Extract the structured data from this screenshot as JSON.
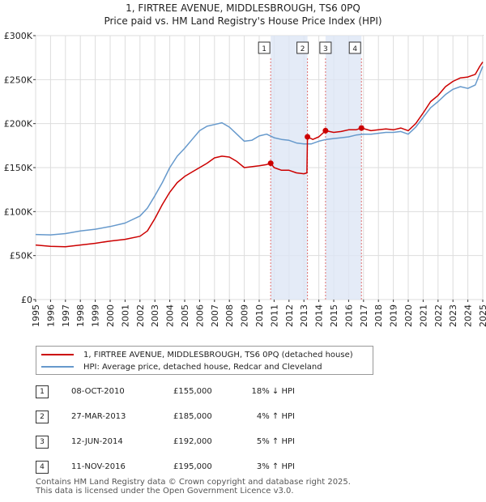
{
  "chart_data": {
    "type": "line",
    "title": "1, FIRTREE AVENUE, MIDDLESBROUGH, TS6 0PQ",
    "subtitle": "Price paid vs. HM Land Registry's House Price Index (HPI)",
    "xlim": [
      1995,
      2025
    ],
    "ylim": [
      0,
      300000
    ],
    "yticks": [
      {
        "value": 0,
        "label": "£0"
      },
      {
        "value": 50000,
        "label": "£50K"
      },
      {
        "value": 100000,
        "label": "£100K"
      },
      {
        "value": 150000,
        "label": "£150K"
      },
      {
        "value": 200000,
        "label": "£200K"
      },
      {
        "value": 250000,
        "label": "£250K"
      },
      {
        "value": 300000,
        "label": "£300K"
      }
    ],
    "xticks": [
      "1995",
      "1996",
      "1997",
      "1998",
      "1999",
      "2000",
      "2001",
      "2002",
      "2003",
      "2004",
      "2005",
      "2006",
      "2007",
      "2008",
      "2009",
      "2010",
      "2011",
      "2012",
      "2013",
      "2014",
      "2015",
      "2016",
      "2017",
      "2018",
      "2019",
      "2020",
      "2021",
      "2022",
      "2023",
      "2024",
      "2025"
    ],
    "grid": true,
    "shaded_ranges": [
      [
        2010.77,
        2013.24
      ],
      [
        2014.45,
        2016.86
      ]
    ],
    "series": [
      {
        "name": "1, FIRTREE AVENUE, MIDDLESBROUGH, TS6 0PQ (detached house)",
        "color": "#cc0000",
        "points": [
          [
            1995.0,
            62000
          ],
          [
            1996.0,
            60500
          ],
          [
            1997.0,
            60000
          ],
          [
            1998.0,
            62000
          ],
          [
            1999.0,
            64000
          ],
          [
            2000.0,
            66500
          ],
          [
            2001.0,
            68500
          ],
          [
            2002.0,
            72000
          ],
          [
            2002.5,
            78000
          ],
          [
            2003.0,
            92000
          ],
          [
            2003.5,
            108000
          ],
          [
            2004.0,
            122000
          ],
          [
            2004.5,
            133000
          ],
          [
            2005.0,
            140000
          ],
          [
            2005.5,
            145000
          ],
          [
            2006.0,
            150000
          ],
          [
            2006.5,
            155000
          ],
          [
            2007.0,
            161000
          ],
          [
            2007.5,
            163000
          ],
          [
            2008.0,
            162000
          ],
          [
            2008.5,
            157000
          ],
          [
            2009.0,
            150000
          ],
          [
            2009.5,
            151000
          ],
          [
            2010.0,
            152000
          ],
          [
            2010.5,
            153500
          ],
          [
            2010.77,
            155000
          ],
          [
            2011.0,
            150000
          ],
          [
            2011.5,
            147000
          ],
          [
            2012.0,
            147000
          ],
          [
            2012.5,
            144000
          ],
          [
            2013.0,
            143000
          ],
          [
            2013.2,
            144000
          ],
          [
            2013.24,
            185000
          ],
          [
            2013.6,
            182000
          ],
          [
            2014.0,
            185000
          ],
          [
            2014.45,
            192000
          ],
          [
            2015.0,
            190000
          ],
          [
            2015.5,
            191000
          ],
          [
            2016.0,
            193000
          ],
          [
            2016.5,
            193000
          ],
          [
            2016.86,
            195000
          ],
          [
            2017.5,
            192000
          ],
          [
            2018.0,
            193000
          ],
          [
            2018.5,
            194000
          ],
          [
            2019.0,
            193000
          ],
          [
            2019.5,
            195000
          ],
          [
            2020.0,
            192000
          ],
          [
            2020.5,
            200000
          ],
          [
            2021.0,
            212000
          ],
          [
            2021.5,
            225000
          ],
          [
            2022.0,
            232000
          ],
          [
            2022.5,
            242000
          ],
          [
            2023.0,
            248000
          ],
          [
            2023.5,
            252000
          ],
          [
            2024.0,
            253000
          ],
          [
            2024.5,
            256000
          ],
          [
            2024.8,
            265000
          ],
          [
            2025.0,
            270000
          ]
        ]
      },
      {
        "name": "HPI: Average price, detached house, Redcar and Cleveland",
        "color": "#6699cc",
        "points": [
          [
            1995.0,
            74000
          ],
          [
            1996.0,
            73500
          ],
          [
            1997.0,
            75000
          ],
          [
            1998.0,
            78000
          ],
          [
            1999.0,
            80000
          ],
          [
            2000.0,
            83000
          ],
          [
            2001.0,
            87000
          ],
          [
            2002.0,
            95000
          ],
          [
            2002.5,
            104000
          ],
          [
            2003.0,
            118000
          ],
          [
            2003.5,
            133000
          ],
          [
            2004.0,
            150000
          ],
          [
            2004.5,
            163000
          ],
          [
            2005.0,
            172000
          ],
          [
            2005.5,
            182000
          ],
          [
            2006.0,
            192000
          ],
          [
            2006.5,
            197000
          ],
          [
            2007.0,
            199000
          ],
          [
            2007.5,
            201000
          ],
          [
            2008.0,
            196000
          ],
          [
            2008.5,
            188000
          ],
          [
            2009.0,
            180000
          ],
          [
            2009.5,
            181000
          ],
          [
            2010.0,
            186000
          ],
          [
            2010.5,
            188000
          ],
          [
            2011.0,
            184000
          ],
          [
            2011.5,
            182000
          ],
          [
            2012.0,
            181000
          ],
          [
            2012.5,
            178000
          ],
          [
            2013.0,
            177000
          ],
          [
            2013.5,
            177000
          ],
          [
            2014.0,
            180000
          ],
          [
            2014.5,
            182000
          ],
          [
            2015.0,
            183000
          ],
          [
            2015.5,
            184000
          ],
          [
            2016.0,
            185000
          ],
          [
            2016.5,
            187000
          ],
          [
            2017.0,
            188000
          ],
          [
            2017.5,
            188000
          ],
          [
            2018.0,
            189000
          ],
          [
            2018.5,
            190000
          ],
          [
            2019.0,
            190000
          ],
          [
            2019.5,
            191000
          ],
          [
            2020.0,
            188000
          ],
          [
            2020.5,
            196000
          ],
          [
            2021.0,
            207000
          ],
          [
            2021.5,
            218000
          ],
          [
            2022.0,
            225000
          ],
          [
            2022.5,
            233000
          ],
          [
            2023.0,
            239000
          ],
          [
            2023.5,
            242000
          ],
          [
            2024.0,
            240000
          ],
          [
            2024.5,
            244000
          ],
          [
            2025.0,
            265000
          ]
        ]
      }
    ],
    "markers": [
      {
        "label": "1",
        "x": 2010.77,
        "y": 155000
      },
      {
        "label": "2",
        "x": 2013.24,
        "y": 185000
      },
      {
        "label": "3",
        "x": 2014.45,
        "y": 192000
      },
      {
        "label": "4",
        "x": 2016.86,
        "y": 195000
      }
    ]
  },
  "legend": {
    "items": [
      {
        "label": "1, FIRTREE AVENUE, MIDDLESBROUGH, TS6 0PQ (detached house)",
        "color": "#cc0000"
      },
      {
        "label": "HPI: Average price, detached house, Redcar and Cleveland",
        "color": "#6699cc"
      }
    ]
  },
  "sales": [
    {
      "num": "1",
      "date": "08-OCT-2010",
      "price": "£155,000",
      "hpi": "18% ↓ HPI"
    },
    {
      "num": "2",
      "date": "27-MAR-2013",
      "price": "£185,000",
      "hpi": "4% ↑ HPI"
    },
    {
      "num": "3",
      "date": "12-JUN-2014",
      "price": "£192,000",
      "hpi": "5% ↑ HPI"
    },
    {
      "num": "4",
      "date": "11-NOV-2016",
      "price": "£195,000",
      "hpi": "3% ↑ HPI"
    }
  ],
  "footer": {
    "line1": "Contains HM Land Registry data © Crown copyright and database right 2025.",
    "line2": "This data is licensed under the Open Government Licence v3.0."
  }
}
